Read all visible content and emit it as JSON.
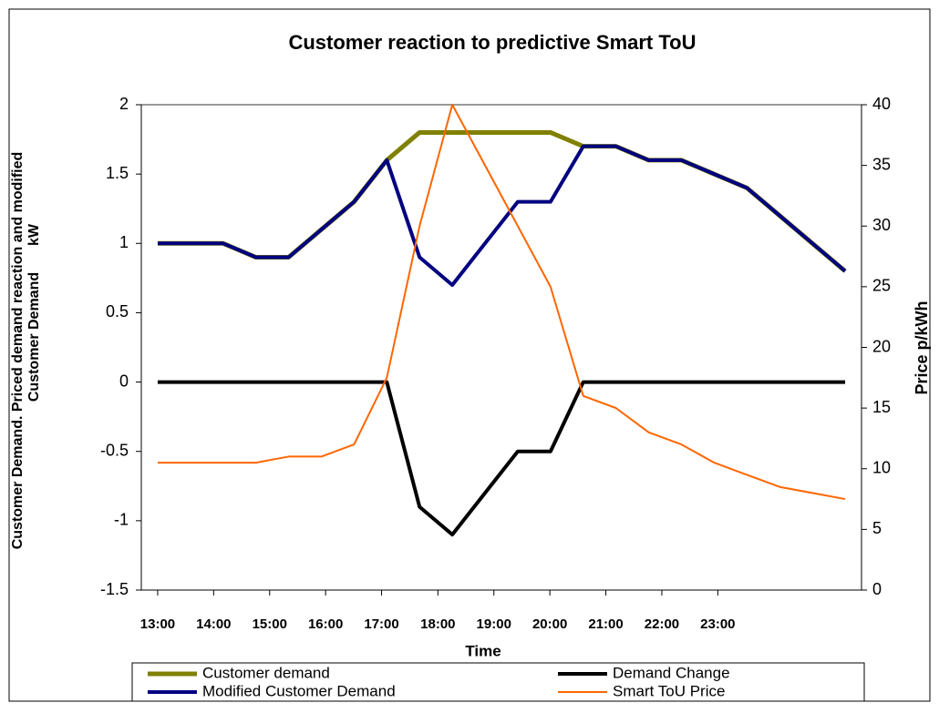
{
  "chart_data": {
    "type": "line",
    "title": "Customer reaction to predictive Smart ToU",
    "x_label": "Time",
    "y_label": [
      "Customer Demand. Priced demand reaction and modified",
      "kW",
      "Customer Demand"
    ],
    "y2_label": "Price p/kWh",
    "x": [
      0,
      1,
      2,
      3,
      4,
      5,
      6,
      7,
      8,
      9,
      10,
      11,
      12,
      13,
      14,
      15,
      16,
      17,
      18,
      19,
      20,
      21
    ],
    "xlim": [
      -0.5,
      21.5
    ],
    "xticks": [
      {
        "value": 0,
        "label": "13:00"
      },
      {
        "value": 1.71,
        "label": "14:00"
      },
      {
        "value": 3.42,
        "label": "15:00"
      },
      {
        "value": 5.13,
        "label": "16:00"
      },
      {
        "value": 6.84,
        "label": "17:00"
      },
      {
        "value": 8.56,
        "label": "18:00"
      },
      {
        "value": 10.27,
        "label": "19:00"
      },
      {
        "value": 11.98,
        "label": "20:00"
      },
      {
        "value": 13.69,
        "label": "21:00"
      },
      {
        "value": 15.4,
        "label": "22:00"
      },
      {
        "value": 17.11,
        "label": "23:00"
      }
    ],
    "ylim": [
      -1.5,
      2
    ],
    "yticks": [
      -1.5,
      -1,
      -0.5,
      0,
      0.5,
      1,
      1.5,
      2
    ],
    "y2lim": [
      0,
      40
    ],
    "y2ticks": [
      0,
      5,
      10,
      15,
      20,
      25,
      30,
      35,
      40
    ],
    "series": [
      {
        "name": "Customer demand",
        "color": "#808000",
        "width": 5,
        "values": [
          1,
          1,
          1,
          0.9,
          0.9,
          1.1,
          1.3,
          1.6,
          1.8,
          1.8,
          1.8,
          1.8,
          1.8,
          1.7,
          1.7,
          1.6,
          1.6,
          1.5,
          1.4,
          1.2,
          1.0,
          0.8
        ]
      },
      {
        "name": "Demand Change",
        "color": "#000000",
        "width": 4,
        "values": [
          0,
          0,
          0,
          0,
          0,
          0,
          0,
          0,
          -0.9,
          -1.1,
          -0.8,
          -0.5,
          -0.5,
          0,
          0,
          0,
          0,
          0,
          0,
          0,
          0,
          0
        ]
      },
      {
        "name": "Modified Customer Demand",
        "color": "#000080",
        "width": 4,
        "values": [
          1,
          1,
          1,
          0.9,
          0.9,
          1.1,
          1.3,
          1.6,
          0.9,
          0.7,
          1.0,
          1.3,
          1.3,
          1.7,
          1.7,
          1.6,
          1.6,
          1.5,
          1.4,
          1.2,
          1.0,
          0.8
        ]
      },
      {
        "name": "Smart ToU Price",
        "color": "#ff6600",
        "width": 2,
        "axis": "y2",
        "values": [
          10.5,
          10.5,
          10.5,
          10.5,
          11,
          11,
          12,
          17.5,
          30,
          40,
          35,
          30,
          25,
          16,
          15,
          13,
          12,
          10.5,
          9.5,
          8.5,
          8,
          7.5
        ]
      }
    ]
  }
}
